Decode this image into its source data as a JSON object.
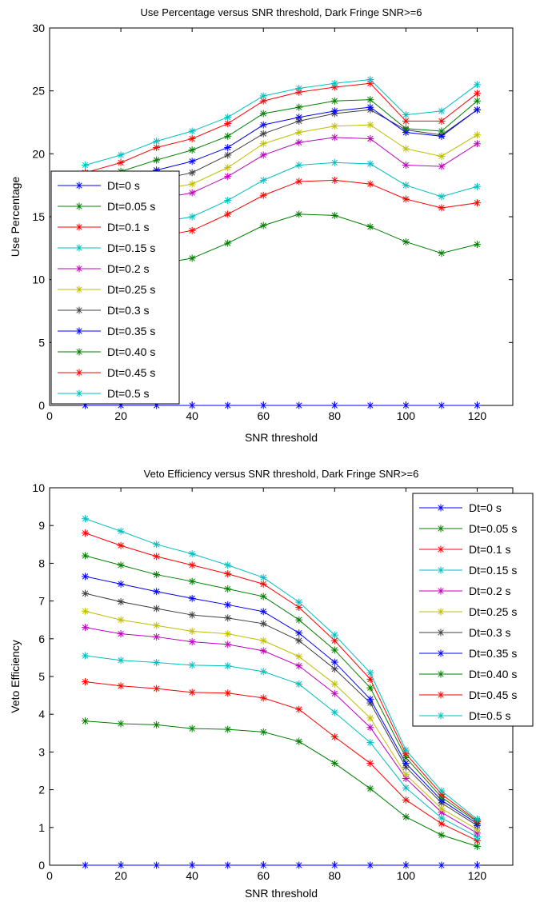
{
  "chart_data": [
    {
      "type": "line",
      "title": "Use Percentage versus SNR threshold, Dark Fringe SNR>=6",
      "xlabel": "SNR threshold",
      "ylabel": "Use Percentage",
      "xlim": [
        0,
        130
      ],
      "ylim": [
        0,
        30
      ],
      "xticks": [
        0,
        20,
        40,
        60,
        80,
        100,
        120
      ],
      "yticks": [
        0,
        5,
        10,
        15,
        20,
        25,
        30
      ],
      "xtick_labels": [
        "0",
        "20",
        "40",
        "60",
        "80",
        "100",
        "120"
      ],
      "ytick_labels": [
        "0",
        "5",
        "10",
        "15",
        "20",
        "25",
        "30"
      ],
      "legend_position": "left",
      "x": [
        10,
        20,
        30,
        40,
        50,
        60,
        70,
        80,
        90,
        100,
        110,
        120
      ],
      "series": [
        {
          "name": "Dt=0 s",
          "color": "#0000ff",
          "values": [
            0,
            0,
            0,
            0,
            0,
            0,
            0,
            0,
            0,
            0,
            0,
            0
          ]
        },
        {
          "name": "Dt=0.05 s",
          "color": "#007f00",
          "values": [
            10.0,
            10.6,
            11.2,
            11.7,
            12.9,
            14.3,
            15.2,
            15.1,
            14.2,
            13.0,
            12.1,
            12.8
          ]
        },
        {
          "name": "Dt=0.1 s",
          "color": "#ff0000",
          "values": [
            12.3,
            12.9,
            13.4,
            13.9,
            15.2,
            16.7,
            17.8,
            17.9,
            17.6,
            16.4,
            15.7,
            16.1
          ]
        },
        {
          "name": "Dt=0.15 s",
          "color": "#00bfbf",
          "values": [
            13.5,
            14.1,
            14.5,
            15.0,
            16.3,
            17.9,
            19.1,
            19.3,
            19.2,
            17.5,
            16.6,
            17.4
          ]
        },
        {
          "name": "Dt=0.2 s",
          "color": "#bf00bf",
          "values": [
            15.0,
            15.8,
            16.4,
            16.9,
            18.2,
            19.9,
            20.9,
            21.3,
            21.2,
            19.1,
            19.0,
            20.8
          ]
        },
        {
          "name": "Dt=0.25 s",
          "color": "#bfbf00",
          "values": [
            15.6,
            16.4,
            17.1,
            17.6,
            18.9,
            20.8,
            21.7,
            22.2,
            22.3,
            20.4,
            19.8,
            21.5
          ]
        },
        {
          "name": "Dt=0.3 s",
          "color": "#3f3f3f",
          "values": [
            16.5,
            17.2,
            17.9,
            18.5,
            19.9,
            21.6,
            22.6,
            23.2,
            23.5,
            21.9,
            21.5,
            23.5
          ]
        },
        {
          "name": "Dt=0.35 s",
          "color": "#0000ff",
          "values": [
            17.1,
            17.9,
            18.7,
            19.4,
            20.5,
            22.3,
            22.9,
            23.4,
            23.7,
            21.7,
            21.4,
            23.5
          ]
        },
        {
          "name": "Dt=0.40 s",
          "color": "#007f00",
          "values": [
            17.8,
            18.6,
            19.5,
            20.3,
            21.4,
            23.2,
            23.7,
            24.2,
            24.3,
            22.0,
            21.8,
            24.2
          ]
        },
        {
          "name": "Dt=0.45 s",
          "color": "#ff0000",
          "values": [
            18.5,
            19.3,
            20.5,
            21.2,
            22.4,
            24.2,
            24.9,
            25.3,
            25.6,
            22.6,
            22.6,
            24.8
          ]
        },
        {
          "name": "Dt=0.5 s",
          "color": "#00bfbf",
          "values": [
            19.1,
            19.9,
            21.0,
            21.8,
            22.9,
            24.6,
            25.2,
            25.6,
            25.9,
            23.1,
            23.4,
            25.5
          ]
        }
      ]
    },
    {
      "type": "line",
      "title": "Veto Efficiency versus SNR threshold, Dark Fringe SNR>=6",
      "xlabel": "SNR threshold",
      "ylabel": "Veto Efficiency",
      "xlim": [
        0,
        130
      ],
      "ylim": [
        0,
        10
      ],
      "xticks": [
        0,
        20,
        40,
        60,
        80,
        100,
        120
      ],
      "yticks": [
        0,
        1,
        2,
        3,
        4,
        5,
        6,
        7,
        8,
        9,
        10
      ],
      "xtick_labels": [
        "0",
        "20",
        "40",
        "60",
        "80",
        "100",
        "120"
      ],
      "ytick_labels": [
        "0",
        "1",
        "2",
        "3",
        "4",
        "5",
        "6",
        "7",
        "8",
        "9",
        "10"
      ],
      "legend_position": "top-right",
      "x": [
        10,
        20,
        30,
        40,
        50,
        60,
        70,
        80,
        90,
        100,
        110,
        120
      ],
      "series": [
        {
          "name": "Dt=0 s",
          "color": "#0000ff",
          "values": [
            0,
            0,
            0,
            0,
            0,
            0,
            0,
            0,
            0,
            0,
            0,
            0
          ]
        },
        {
          "name": "Dt=0.05 s",
          "color": "#007f00",
          "values": [
            3.82,
            3.75,
            3.72,
            3.62,
            3.6,
            3.53,
            3.28,
            2.7,
            2.03,
            1.28,
            0.8,
            0.5
          ]
        },
        {
          "name": "Dt=0.1 s",
          "color": "#ff0000",
          "values": [
            4.86,
            4.75,
            4.68,
            4.58,
            4.56,
            4.43,
            4.13,
            3.4,
            2.7,
            1.73,
            1.1,
            0.65
          ]
        },
        {
          "name": "Dt=0.15 s",
          "color": "#00bfbf",
          "values": [
            5.55,
            5.43,
            5.37,
            5.3,
            5.28,
            5.13,
            4.8,
            4.05,
            3.25,
            2.05,
            1.25,
            0.75
          ]
        },
        {
          "name": "Dt=0.2 s",
          "color": "#bf00bf",
          "values": [
            6.3,
            6.13,
            6.05,
            5.92,
            5.85,
            5.68,
            5.28,
            4.55,
            3.65,
            2.3,
            1.4,
            0.85
          ]
        },
        {
          "name": "Dt=0.25 s",
          "color": "#bfbf00",
          "values": [
            6.73,
            6.5,
            6.35,
            6.2,
            6.13,
            5.95,
            5.53,
            4.8,
            3.9,
            2.4,
            1.5,
            0.95
          ]
        },
        {
          "name": "Dt=0.3 s",
          "color": "#3f3f3f",
          "values": [
            7.2,
            6.98,
            6.8,
            6.63,
            6.55,
            6.4,
            5.95,
            5.2,
            4.3,
            2.6,
            1.65,
            1.05
          ]
        },
        {
          "name": "Dt=0.35 s",
          "color": "#0000ff",
          "values": [
            7.65,
            7.45,
            7.25,
            7.07,
            6.9,
            6.72,
            6.15,
            5.38,
            4.4,
            2.7,
            1.72,
            1.1
          ]
        },
        {
          "name": "Dt=0.40 s",
          "color": "#007f00",
          "values": [
            8.2,
            7.95,
            7.7,
            7.52,
            7.32,
            7.12,
            6.5,
            5.7,
            4.7,
            2.85,
            1.8,
            1.15
          ]
        },
        {
          "name": "Dt=0.45 s",
          "color": "#ff0000",
          "values": [
            8.8,
            8.47,
            8.18,
            7.95,
            7.72,
            7.45,
            6.83,
            5.95,
            4.93,
            2.95,
            1.88,
            1.18
          ]
        },
        {
          "name": "Dt=0.5 s",
          "color": "#00bfbf",
          "values": [
            9.18,
            8.85,
            8.5,
            8.25,
            7.95,
            7.62,
            6.97,
            6.1,
            5.1,
            3.05,
            1.97,
            1.22
          ]
        }
      ]
    }
  ]
}
